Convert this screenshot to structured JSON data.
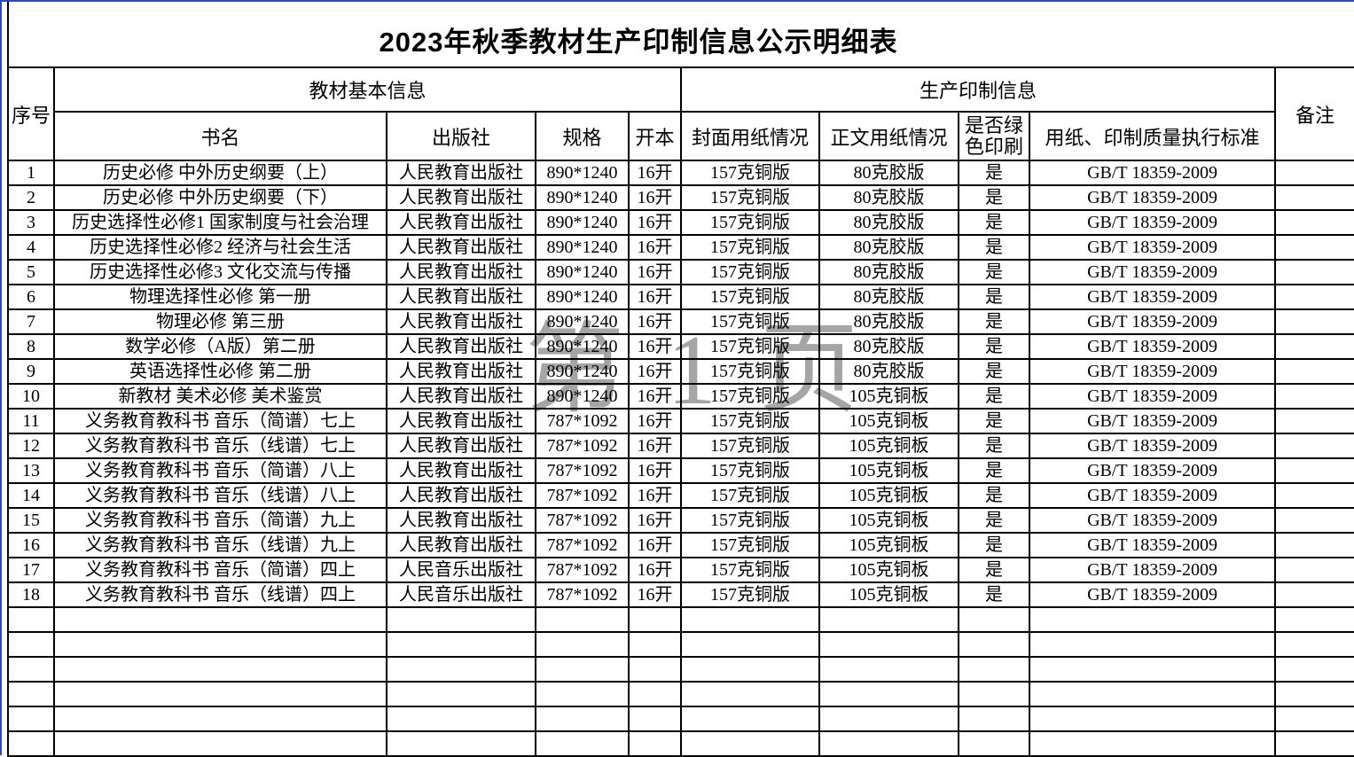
{
  "title": "2023年秋季教材生产印制信息公示明细表",
  "watermark": "第 1 页",
  "colors": {
    "page_break_blue": "#2a48cf",
    "grid_black": "#000000",
    "watermark_gray": "#a5a5a5"
  },
  "header": {
    "serial": "序号",
    "basic_info_group": "教材基本信息",
    "production_group": "生产印制信息",
    "book_name": "书名",
    "publisher": "出版社",
    "spec": "规格",
    "format": "开本",
    "cover_paper": "封面用纸情况",
    "body_paper": "正文用纸情况",
    "green_print": "是否绿色印刷",
    "quality_standard": "用纸、印制质量执行标准",
    "remark": "备注"
  },
  "rows": [
    {
      "no": "1",
      "book": "历史必修 中外历史纲要（上）",
      "publisher": "人民教育出版社",
      "spec": "890*1240",
      "format": "16开",
      "cover": "157克铜版",
      "body": "80克胶版",
      "green": "是",
      "standard": "GB/T 18359-2009",
      "remark": ""
    },
    {
      "no": "2",
      "book": "历史必修 中外历史纲要（下）",
      "publisher": "人民教育出版社",
      "spec": "890*1240",
      "format": "16开",
      "cover": "157克铜版",
      "body": "80克胶版",
      "green": "是",
      "standard": "GB/T 18359-2009",
      "remark": ""
    },
    {
      "no": "3",
      "book": "历史选择性必修1 国家制度与社会治理",
      "publisher": "人民教育出版社",
      "spec": "890*1240",
      "format": "16开",
      "cover": "157克铜版",
      "body": "80克胶版",
      "green": "是",
      "standard": "GB/T 18359-2009",
      "remark": ""
    },
    {
      "no": "4",
      "book": "历史选择性必修2 经济与社会生活",
      "publisher": "人民教育出版社",
      "spec": "890*1240",
      "format": "16开",
      "cover": "157克铜版",
      "body": "80克胶版",
      "green": "是",
      "standard": "GB/T 18359-2009",
      "remark": ""
    },
    {
      "no": "5",
      "book": "历史选择性必修3 文化交流与传播",
      "publisher": "人民教育出版社",
      "spec": "890*1240",
      "format": "16开",
      "cover": "157克铜版",
      "body": "80克胶版",
      "green": "是",
      "standard": "GB/T 18359-2009",
      "remark": ""
    },
    {
      "no": "6",
      "book": "物理选择性必修 第一册",
      "publisher": "人民教育出版社",
      "spec": "890*1240",
      "format": "16开",
      "cover": "157克铜版",
      "body": "80克胶版",
      "green": "是",
      "standard": "GB/T 18359-2009",
      "remark": ""
    },
    {
      "no": "7",
      "book": "物理必修 第三册",
      "publisher": "人民教育出版社",
      "spec": "890*1240",
      "format": "16开",
      "cover": "157克铜版",
      "body": "80克胶版",
      "green": "是",
      "standard": "GB/T 18359-2009",
      "remark": ""
    },
    {
      "no": "8",
      "book": "数学必修（A版）第二册",
      "publisher": "人民教育出版社",
      "spec": "890*1240",
      "format": "16开",
      "cover": "157克铜版",
      "body": "80克胶版",
      "green": "是",
      "standard": "GB/T 18359-2009",
      "remark": ""
    },
    {
      "no": "9",
      "book": "英语选择性必修 第二册",
      "publisher": "人民教育出版社",
      "spec": "890*1240",
      "format": "16开",
      "cover": "157克铜版",
      "body": "80克胶版",
      "green": "是",
      "standard": "GB/T 18359-2009",
      "remark": ""
    },
    {
      "no": "10",
      "book": "新教材 美术必修 美术鉴赏",
      "publisher": "人民教育出版社",
      "spec": "890*1240",
      "format": "16开",
      "cover": "157克铜版",
      "body": "105克铜板",
      "green": "是",
      "standard": "GB/T 18359-2009",
      "remark": ""
    },
    {
      "no": "11",
      "book": "义务教育教科书 音乐（简谱）七上",
      "publisher": "人民教育出版社",
      "spec": "787*1092",
      "format": "16开",
      "cover": "157克铜版",
      "body": "105克铜板",
      "green": "是",
      "standard": "GB/T 18359-2009",
      "remark": ""
    },
    {
      "no": "12",
      "book": "义务教育教科书 音乐（线谱）七上",
      "publisher": "人民教育出版社",
      "spec": "787*1092",
      "format": "16开",
      "cover": "157克铜版",
      "body": "105克铜板",
      "green": "是",
      "standard": "GB/T 18359-2009",
      "remark": ""
    },
    {
      "no": "13",
      "book": "义务教育教科书 音乐（简谱）八上",
      "publisher": "人民教育出版社",
      "spec": "787*1092",
      "format": "16开",
      "cover": "157克铜版",
      "body": "105克铜板",
      "green": "是",
      "standard": "GB/T 18359-2009",
      "remark": ""
    },
    {
      "no": "14",
      "book": "义务教育教科书 音乐（线谱）八上",
      "publisher": "人民教育出版社",
      "spec": "787*1092",
      "format": "16开",
      "cover": "157克铜版",
      "body": "105克铜板",
      "green": "是",
      "standard": "GB/T 18359-2009",
      "remark": ""
    },
    {
      "no": "15",
      "book": "义务教育教科书 音乐（简谱）九上",
      "publisher": "人民教育出版社",
      "spec": "787*1092",
      "format": "16开",
      "cover": "157克铜版",
      "body": "105克铜板",
      "green": "是",
      "standard": "GB/T 18359-2009",
      "remark": ""
    },
    {
      "no": "16",
      "book": "义务教育教科书 音乐（线谱）九上",
      "publisher": "人民教育出版社",
      "spec": "787*1092",
      "format": "16开",
      "cover": "157克铜版",
      "body": "105克铜板",
      "green": "是",
      "standard": "GB/T 18359-2009",
      "remark": ""
    },
    {
      "no": "17",
      "book": "义务教育教科书 音乐（简谱）四上",
      "publisher": "人民音乐出版社",
      "spec": "787*1092",
      "format": "16开",
      "cover": "157克铜版",
      "body": "105克铜板",
      "green": "是",
      "standard": "GB/T 18359-2009",
      "remark": ""
    },
    {
      "no": "18",
      "book": "义务教育教科书 音乐（线谱）四上",
      "publisher": "人民音乐出版社",
      "spec": "787*1092",
      "format": "16开",
      "cover": "157克铜版",
      "body": "105克铜板",
      "green": "是",
      "standard": "GB/T 18359-2009",
      "remark": ""
    }
  ],
  "empty_rows": 6
}
